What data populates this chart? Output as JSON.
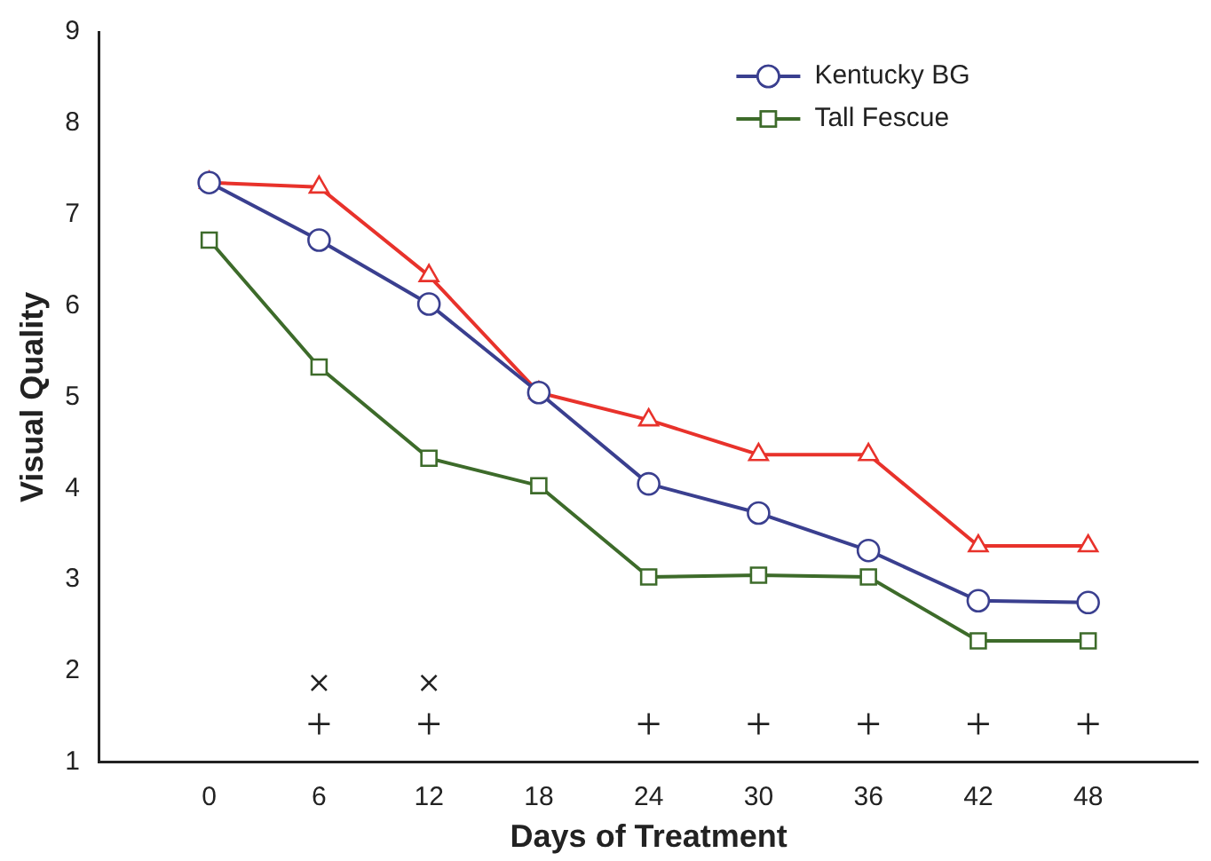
{
  "chart_data": {
    "type": "line",
    "xlabel": "Days of Treatment",
    "ylabel": "Visual Quality",
    "x": [
      0,
      6,
      12,
      18,
      24,
      30,
      36,
      42,
      48
    ],
    "xlim": [
      -6,
      54
    ],
    "xticks": [
      0,
      6,
      12,
      18,
      24,
      30,
      36,
      42,
      48
    ],
    "ylim": [
      1,
      9
    ],
    "yticks": [
      1,
      2,
      3,
      4,
      5,
      6,
      7,
      8,
      9
    ],
    "grid": false,
    "legend": "top right",
    "line_style": "solid",
    "series": [
      {
        "name": "Kentucky BG",
        "color": "#3a3f8f",
        "marker": "circle",
        "values": [
          7.35,
          6.72,
          6.02,
          5.05,
          4.05,
          3.73,
          3.32,
          2.77,
          2.75
        ]
      },
      {
        "color": "#e8322b",
        "marker": "triangle",
        "values": [
          7.35,
          7.3,
          6.33,
          5.05,
          4.75,
          4.37,
          4.37,
          3.37,
          3.37
        ]
      },
      {
        "name": "Tall Fescue",
        "color": "#3d6b2a",
        "marker": "square",
        "values": [
          6.72,
          5.33,
          4.33,
          4.03,
          3.03,
          3.05,
          3.03,
          2.33,
          2.33
        ]
      },
      {
        "type": "scatter",
        "color": "#222222",
        "marker": "cross",
        "x": [
          6,
          12
        ],
        "values": [
          1.87,
          1.87
        ]
      },
      {
        "type": "scatter",
        "color": "#222222",
        "marker": "plus",
        "x": [
          6,
          12,
          24,
          30,
          36,
          42,
          48
        ],
        "values": [
          1.42,
          1.42,
          1.42,
          1.42,
          1.42,
          1.42,
          1.42
        ]
      }
    ]
  }
}
